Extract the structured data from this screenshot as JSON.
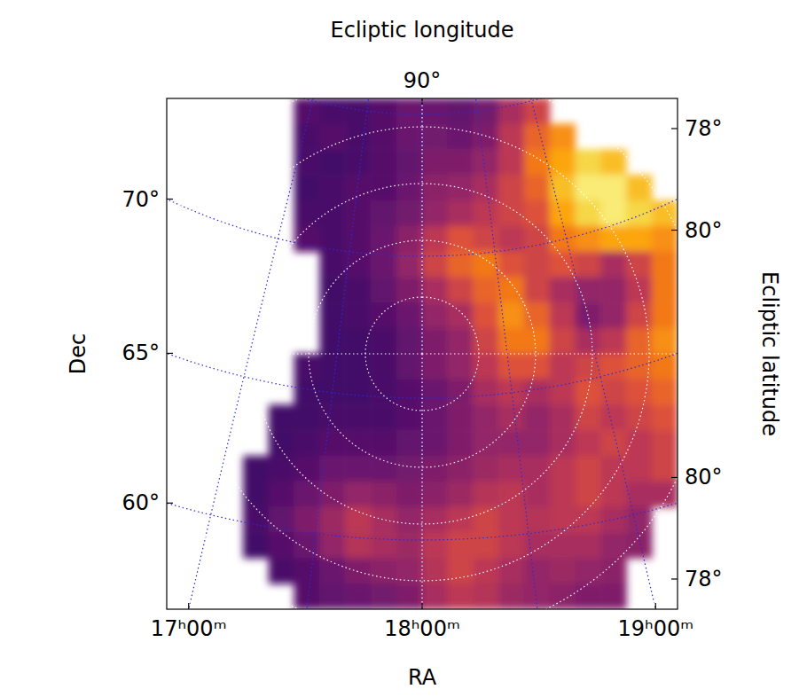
{
  "chart_data": {
    "type": "heatmap",
    "x_label": "RA",
    "y_label": "Dec",
    "top_label": "Ecliptic longitude",
    "right_label": "Ecliptic latitude",
    "center": {
      "ra": 270,
      "dec": 66.56
    },
    "xlim": [
      -9,
      9
    ],
    "ylim": [
      -9,
      9
    ],
    "x": [
      -8.55,
      -7.65,
      -6.75,
      -5.85,
      -4.95,
      -4.05,
      -3.15,
      -2.25,
      -1.35,
      -0.45,
      0.45,
      1.35,
      2.25,
      3.15,
      4.05,
      4.95,
      5.85,
      6.75,
      7.65,
      8.55
    ],
    "y": [
      8.55,
      7.65,
      6.75,
      5.85,
      4.95,
      4.05,
      3.15,
      2.25,
      1.35,
      0.45,
      -0.45,
      -1.35,
      -2.25,
      -3.15,
      -4.05,
      -4.95,
      -5.85,
      -6.75,
      -7.65,
      -8.55
    ],
    "zlim": [
      0,
      1
    ],
    "values": [
      [
        null,
        null,
        null,
        null,
        null,
        0.25,
        0.22,
        0.22,
        0.25,
        0.3,
        0.3,
        0.28,
        0.32,
        0.45,
        0.55,
        null,
        null,
        null,
        null,
        null
      ],
      [
        null,
        null,
        null,
        null,
        null,
        0.22,
        0.25,
        0.22,
        0.25,
        0.3,
        0.32,
        0.3,
        0.35,
        0.5,
        0.65,
        0.75,
        null,
        null,
        null,
        null
      ],
      [
        null,
        null,
        null,
        null,
        null,
        0.22,
        0.2,
        0.22,
        0.25,
        0.28,
        0.35,
        0.35,
        0.4,
        0.5,
        0.7,
        0.8,
        0.9,
        0.85,
        null,
        null
      ],
      [
        null,
        null,
        null,
        null,
        null,
        0.2,
        0.22,
        0.25,
        0.25,
        0.3,
        0.38,
        0.4,
        0.45,
        0.55,
        0.65,
        0.85,
        0.95,
        0.95,
        0.85,
        null
      ],
      [
        null,
        null,
        null,
        null,
        null,
        0.22,
        0.22,
        0.25,
        0.28,
        0.32,
        0.4,
        0.45,
        0.5,
        0.55,
        0.6,
        0.8,
        0.9,
        0.95,
        0.9,
        0.85
      ],
      [
        null,
        null,
        null,
        null,
        null,
        0.25,
        0.22,
        0.25,
        0.3,
        0.38,
        0.5,
        0.6,
        0.55,
        0.5,
        0.55,
        0.7,
        0.75,
        0.8,
        0.8,
        0.75
      ],
      [
        null,
        null,
        null,
        null,
        null,
        null,
        0.22,
        0.25,
        0.3,
        0.4,
        0.55,
        0.65,
        0.7,
        0.6,
        0.55,
        0.6,
        0.55,
        0.45,
        0.55,
        0.7
      ],
      [
        null,
        null,
        null,
        null,
        null,
        null,
        0.2,
        0.22,
        0.28,
        0.35,
        0.45,
        0.55,
        0.65,
        0.7,
        0.55,
        0.45,
        0.4,
        0.4,
        0.5,
        0.7
      ],
      [
        null,
        null,
        null,
        null,
        null,
        null,
        0.2,
        0.22,
        0.25,
        0.3,
        0.4,
        0.45,
        0.6,
        0.75,
        0.65,
        0.5,
        0.35,
        0.4,
        0.55,
        0.7
      ],
      [
        null,
        null,
        null,
        null,
        null,
        null,
        0.2,
        0.2,
        0.22,
        0.28,
        0.35,
        0.4,
        0.55,
        0.7,
        0.7,
        0.55,
        0.45,
        0.5,
        0.65,
        0.75
      ],
      [
        null,
        null,
        null,
        null,
        null,
        0.22,
        0.2,
        0.2,
        0.22,
        0.28,
        0.35,
        0.4,
        0.5,
        0.6,
        0.6,
        0.5,
        0.55,
        0.6,
        0.65,
        0.7
      ],
      [
        null,
        null,
        null,
        null,
        null,
        0.2,
        0.2,
        0.2,
        0.22,
        0.25,
        0.3,
        0.35,
        0.45,
        0.5,
        0.45,
        0.5,
        0.6,
        0.55,
        0.6,
        0.65
      ],
      [
        null,
        null,
        null,
        null,
        0.2,
        0.2,
        0.22,
        0.22,
        0.22,
        0.25,
        0.3,
        0.35,
        0.4,
        0.45,
        0.4,
        0.45,
        0.55,
        0.5,
        0.55,
        0.6
      ],
      [
        null,
        null,
        null,
        null,
        0.2,
        0.22,
        0.25,
        0.25,
        0.25,
        0.28,
        0.3,
        0.35,
        0.4,
        0.4,
        0.4,
        0.45,
        0.5,
        0.55,
        0.5,
        0.55
      ],
      [
        null,
        null,
        null,
        0.2,
        0.22,
        0.25,
        0.3,
        0.3,
        0.3,
        0.32,
        0.35,
        0.38,
        0.42,
        0.45,
        0.45,
        0.5,
        0.55,
        0.5,
        0.5,
        0.55
      ],
      [
        null,
        null,
        null,
        0.2,
        0.25,
        0.3,
        0.35,
        0.4,
        0.38,
        0.35,
        0.38,
        0.42,
        0.48,
        0.5,
        0.45,
        0.5,
        0.55,
        0.5,
        0.45,
        0.45
      ],
      [
        null,
        null,
        null,
        0.22,
        0.28,
        0.35,
        0.42,
        0.5,
        0.45,
        0.4,
        0.45,
        0.5,
        0.55,
        0.5,
        0.48,
        0.5,
        0.5,
        0.45,
        0.4,
        null
      ],
      [
        null,
        null,
        null,
        0.2,
        0.25,
        0.3,
        0.4,
        0.48,
        0.45,
        0.42,
        0.5,
        0.55,
        0.55,
        0.5,
        0.45,
        0.45,
        0.45,
        0.4,
        0.38,
        null
      ],
      [
        null,
        null,
        null,
        null,
        0.22,
        0.25,
        0.3,
        0.35,
        0.38,
        0.4,
        0.48,
        0.55,
        0.5,
        0.45,
        0.4,
        0.42,
        0.4,
        0.38,
        null,
        null
      ],
      [
        null,
        null,
        null,
        null,
        null,
        0.25,
        0.28,
        0.3,
        0.32,
        0.35,
        0.45,
        0.5,
        0.48,
        0.42,
        0.4,
        0.38,
        0.35,
        0.35,
        null,
        null
      ]
    ],
    "ra_grid": [
      255,
      262.5,
      270,
      277.5,
      285
    ],
    "ra_ticks": [
      {
        "value": 255,
        "label": "17ʰ00ᵐ"
      },
      {
        "value": 270,
        "label": "18ʰ00ᵐ"
      },
      {
        "value": 285,
        "label": "19ʰ00ᵐ"
      }
    ],
    "dec_grid": [
      60,
      65,
      70,
      75
    ],
    "dec_ticks": [
      {
        "value": 60,
        "label": "60°"
      },
      {
        "value": 65,
        "label": "65°"
      },
      {
        "value": 70,
        "label": "70°"
      }
    ],
    "ecl_lat_grid": [
      78,
      80,
      82,
      84,
      86,
      88
    ],
    "ecl_lat_ticks": [
      {
        "value": 78,
        "label": "78°"
      },
      {
        "value": 80,
        "label": "80°"
      }
    ],
    "ecl_lon_grid": [
      0,
      90,
      180,
      270
    ],
    "ecl_lon_ticks": [
      {
        "value": 90,
        "label": "90°"
      }
    ],
    "grid": true
  }
}
